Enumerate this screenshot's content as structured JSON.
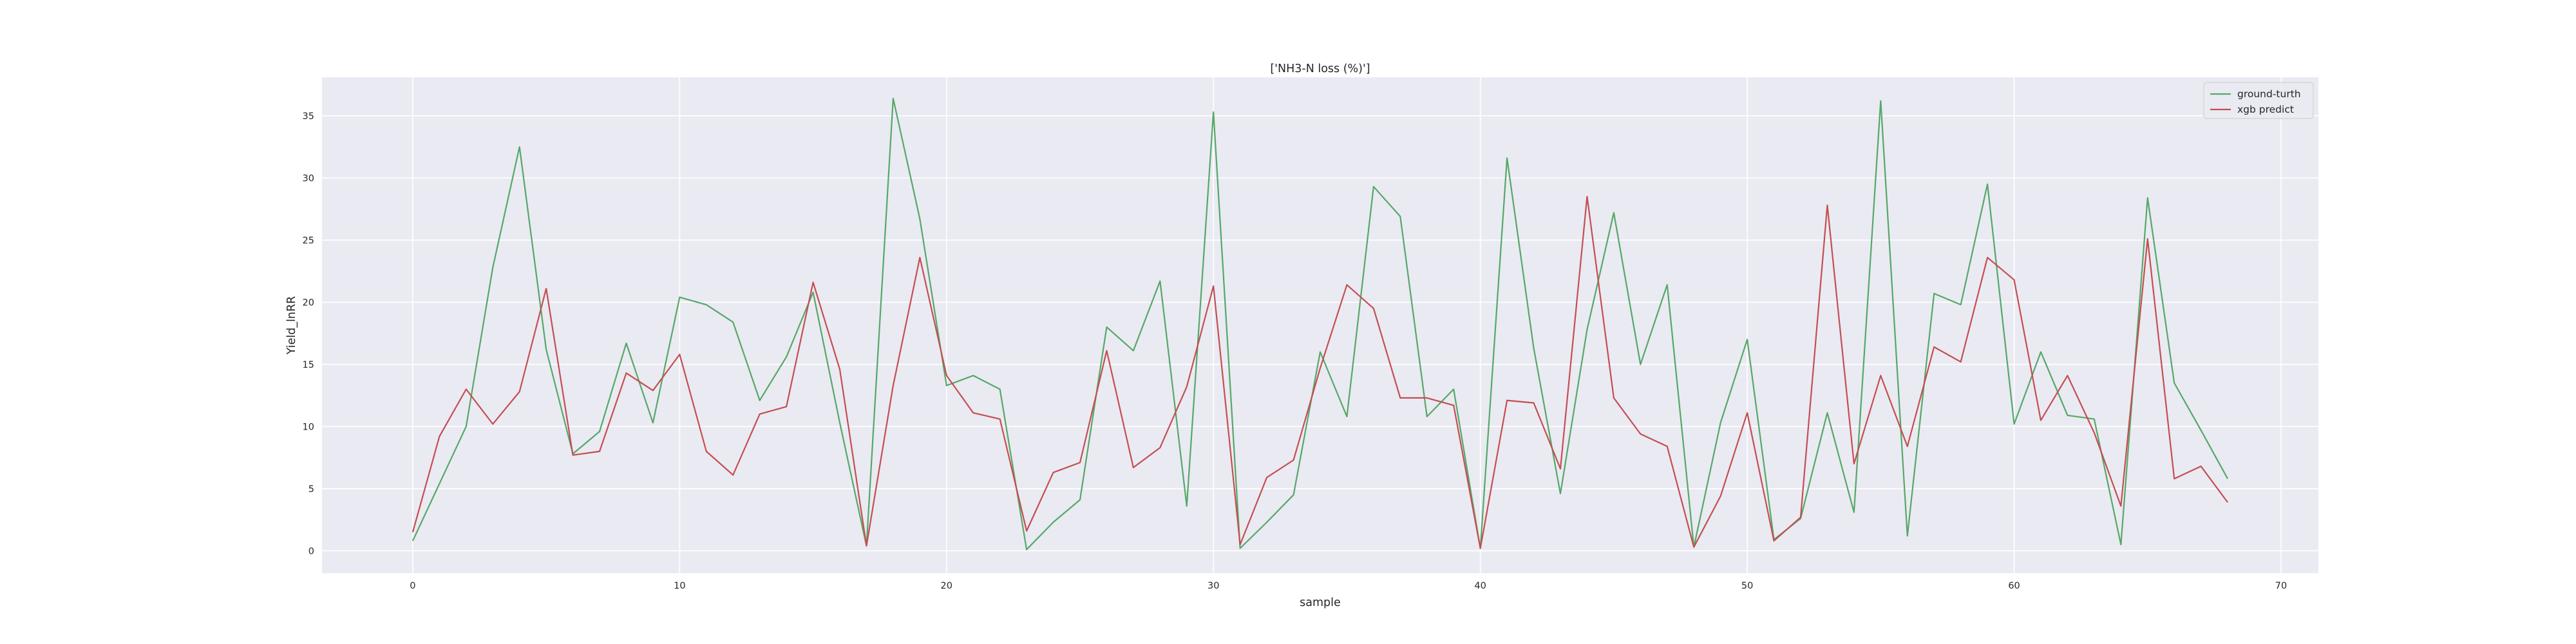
{
  "chart_data": {
    "type": "line",
    "title": "['NH3-N loss (%)']",
    "xlabel": "sample",
    "ylabel": "Yield_lnRR",
    "xlim": [
      -3.4,
      71.4
    ],
    "ylim": [
      -1.8,
      38.1
    ],
    "xticks": [
      0,
      10,
      20,
      30,
      40,
      50,
      60,
      70
    ],
    "yticks": [
      0,
      5,
      10,
      15,
      20,
      25,
      30,
      35
    ],
    "grid": true,
    "legend_position": "top-right",
    "series": [
      {
        "name": "ground-turth",
        "color": "#55a868",
        "x": [
          0,
          1,
          2,
          3,
          4,
          5,
          6,
          7,
          8,
          9,
          10,
          11,
          12,
          13,
          14,
          15,
          16,
          17,
          18,
          19,
          20,
          21,
          22,
          23,
          24,
          25,
          26,
          27,
          28,
          29,
          30,
          31,
          32,
          33,
          34,
          35,
          36,
          37,
          38,
          39,
          40,
          41,
          42,
          43,
          44,
          45,
          46,
          47,
          48,
          49,
          50,
          51,
          52,
          53,
          54,
          55,
          56,
          57,
          58,
          59,
          60,
          61,
          62,
          63,
          64,
          65,
          66,
          67,
          68
        ],
        "values": [
          0.8,
          5.4,
          10.0,
          22.8,
          32.5,
          16.2,
          7.8,
          9.6,
          16.7,
          10.3,
          20.4,
          19.8,
          18.4,
          12.1,
          15.6,
          20.8,
          10.3,
          0.4,
          36.4,
          26.7,
          13.3,
          14.1,
          13.0,
          0.1,
          2.3,
          4.1,
          18.0,
          16.1,
          21.7,
          3.6,
          35.3,
          0.2,
          2.3,
          4.5,
          16.0,
          10.8,
          29.3,
          26.9,
          10.8,
          13.0,
          0.2,
          31.6,
          16.3,
          4.6,
          17.8,
          27.2,
          15.0,
          21.4,
          0.3,
          10.3,
          17.0,
          0.9,
          2.6,
          11.1,
          3.1,
          36.2,
          1.2,
          20.7,
          19.8,
          29.5,
          10.2,
          16.0,
          10.9,
          10.6,
          0.5,
          28.4,
          13.5,
          9.7,
          5.8
        ]
      },
      {
        "name": "xgb predict",
        "color": "#c44e52",
        "x": [
          0,
          1,
          2,
          3,
          4,
          5,
          6,
          7,
          8,
          9,
          10,
          11,
          12,
          13,
          14,
          15,
          16,
          17,
          18,
          19,
          20,
          21,
          22,
          23,
          24,
          25,
          26,
          27,
          28,
          29,
          30,
          31,
          32,
          33,
          34,
          35,
          36,
          37,
          38,
          39,
          40,
          41,
          42,
          43,
          44,
          45,
          46,
          47,
          48,
          49,
          50,
          51,
          52,
          53,
          54,
          55,
          56,
          57,
          58,
          59,
          60,
          61,
          62,
          63,
          64,
          65,
          66,
          67,
          68
        ],
        "values": [
          1.5,
          9.2,
          13.0,
          10.2,
          12.8,
          21.1,
          7.7,
          8.0,
          14.3,
          12.9,
          15.8,
          8.0,
          6.1,
          11.0,
          11.6,
          21.6,
          14.6,
          0.4,
          13.3,
          23.6,
          14.1,
          11.1,
          10.6,
          1.6,
          6.3,
          7.1,
          16.1,
          6.7,
          8.3,
          13.2,
          21.3,
          0.5,
          5.9,
          7.3,
          14.7,
          21.4,
          19.5,
          12.3,
          12.3,
          11.7,
          0.2,
          12.1,
          11.9,
          6.6,
          28.5,
          12.3,
          9.4,
          8.4,
          0.3,
          4.4,
          11.1,
          0.8,
          2.7,
          27.8,
          7.0,
          14.1,
          8.4,
          16.4,
          15.2,
          23.6,
          21.8,
          10.5,
          14.1,
          9.5,
          3.6,
          25.1,
          5.8,
          6.8,
          3.9
        ]
      }
    ]
  },
  "colors": {
    "axes_background": "#eaeaf2",
    "grid": "#ffffff",
    "text": "#262626"
  }
}
